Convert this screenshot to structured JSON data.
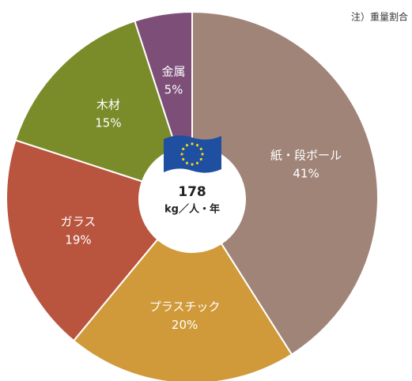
{
  "chart_data": {
    "type": "donut",
    "note": "注）重量割合",
    "categories": [
      "紙・段ボール",
      "プラスチック",
      "ガラス",
      "木材",
      "金属"
    ],
    "values": [
      41,
      20,
      19,
      15,
      5
    ],
    "value_labels": [
      "41%",
      "20%",
      "19%",
      "15%",
      "5%"
    ],
    "colors": [
      "#a08478",
      "#d09a3a",
      "#b9553f",
      "#7a8c2a",
      "#7d4e78"
    ],
    "center_value": 178,
    "center_unit": "kg／人・年"
  }
}
